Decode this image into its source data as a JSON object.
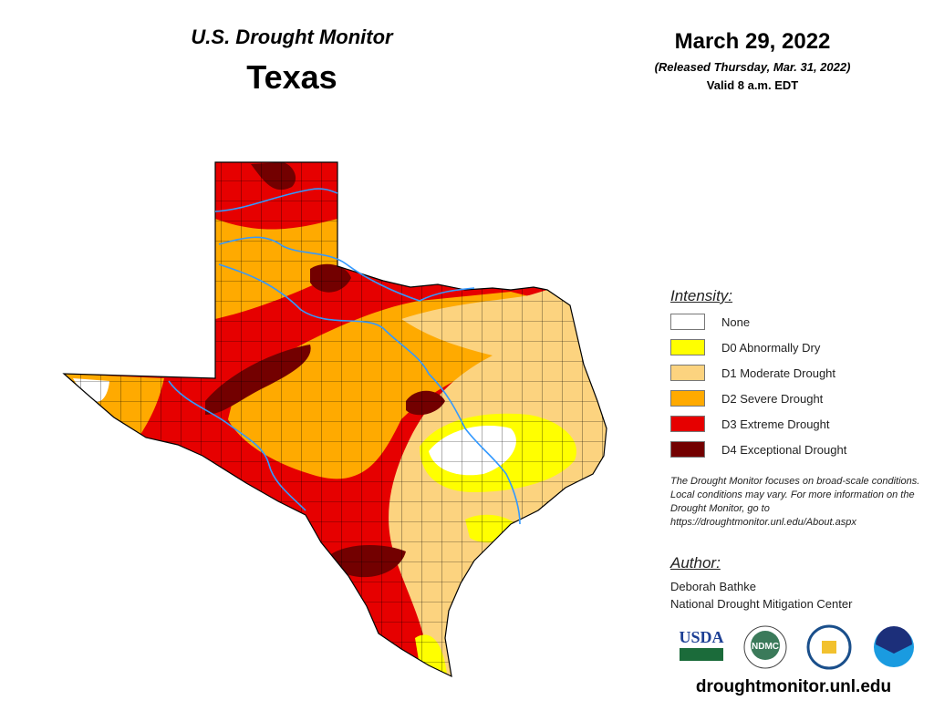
{
  "header": {
    "title": "U.S. Drought Monitor",
    "region": "Texas",
    "date": "March 29, 2022",
    "released": "(Released Thursday, Mar. 31, 2022)",
    "valid": "Valid 8 a.m. EDT"
  },
  "legend": {
    "title": "Intensity:",
    "items": [
      {
        "label": "None",
        "color": "#ffffff"
      },
      {
        "label": "D0 Abnormally Dry",
        "color": "#ffff00"
      },
      {
        "label": "D1 Moderate Drought",
        "color": "#fcd37f"
      },
      {
        "label": "D2 Severe Drought",
        "color": "#ffaa00"
      },
      {
        "label": "D3 Extreme Drought",
        "color": "#e60000"
      },
      {
        "label": "D4 Exceptional Drought",
        "color": "#730000"
      }
    ]
  },
  "note": "The Drought Monitor focuses on broad-scale conditions. Local conditions may vary. For more information on the Drought Monitor, go to https://droughtmonitor.unl.edu/About.aspx",
  "author": {
    "title": "Author:",
    "name": "Deborah Bathke",
    "org": "National Drought Mitigation Center"
  },
  "logos": {
    "usda": "USDA",
    "ndmc": "NDMC",
    "commerce": "Department of Commerce seal",
    "noaa": "NOAA"
  },
  "website": "droughtmonitor.unl.edu",
  "map": {
    "river_color": "#3399ff",
    "county_line_color": "#000000"
  }
}
